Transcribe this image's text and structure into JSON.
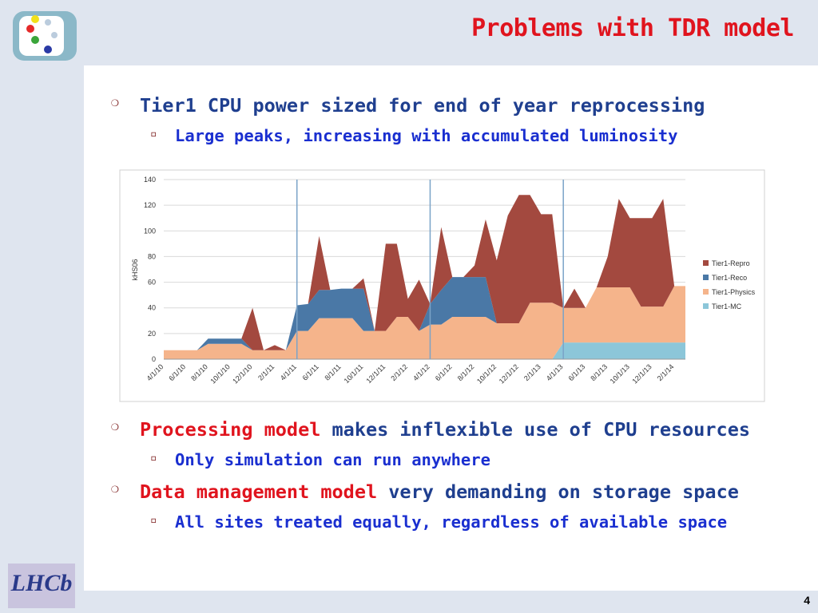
{
  "title": "Problems with TDR model",
  "bullets": [
    {
      "level": 1,
      "runs": [
        {
          "text": "Tier1 CPU power sized for end of year reprocessing",
          "color": "#1f3f8f"
        }
      ]
    },
    {
      "level": 2,
      "runs": [
        {
          "text": "Large peaks, increasing with accumulated luminosity",
          "color": "#1a2fd0"
        }
      ]
    },
    {
      "level": 1,
      "runs": [
        {
          "text": "Processing model",
          "color": "#e0141e"
        },
        {
          "text": " makes inflexible use of CPU resources",
          "color": "#1f3f8f"
        }
      ]
    },
    {
      "level": 2,
      "runs": [
        {
          "text": "Only simulation can run anywhere",
          "color": "#1a2fd0"
        }
      ]
    },
    {
      "level": 1,
      "runs": [
        {
          "text": "Data management model",
          "color": "#e0141e"
        },
        {
          "text": " very demanding on storage space",
          "color": "#1f3f8f"
        }
      ]
    },
    {
      "level": 2,
      "runs": [
        {
          "text": "All sites treated equally, regardless of available space",
          "color": "#1a2fd0"
        }
      ]
    }
  ],
  "logo_text": "LHCb",
  "page_number": "4",
  "chart_data": {
    "type": "stacked_area",
    "ylabel": "kHS06",
    "ylim": [
      0,
      140
    ],
    "yticks": [
      0,
      20,
      40,
      60,
      80,
      100,
      120,
      140
    ],
    "grid": true,
    "legend": "right",
    "categories": [
      "4/1/10",
      null,
      "6/1/10",
      null,
      "8/1/10",
      null,
      "10/1/10",
      null,
      "12/1/10",
      null,
      "2/1/11",
      null,
      "4/1/11",
      null,
      "6/1/11",
      null,
      "8/1/11",
      null,
      "10/1/11",
      null,
      "12/1/11",
      null,
      "2/1/12",
      null,
      "4/1/12",
      null,
      "6/1/12",
      null,
      "8/1/12",
      null,
      "10/1/12",
      null,
      "12/1/12",
      null,
      "2/1/13",
      null,
      "4/1/13",
      null,
      "6/1/13",
      null,
      "8/1/13",
      null,
      "10/1/13",
      null,
      "12/1/13",
      null,
      "2/1/14",
      null
    ],
    "series": [
      {
        "name": "Tier1-Repro",
        "color": "#a3493f",
        "values": [
          0,
          0,
          0,
          0,
          0,
          0,
          0,
          0,
          33,
          0,
          4,
          0,
          0,
          0,
          42,
          0,
          0,
          0,
          8,
          0,
          68,
          57,
          14,
          40,
          0,
          49,
          0,
          0,
          9,
          45,
          49,
          84,
          100,
          84,
          69,
          69,
          0,
          15,
          0,
          0,
          24,
          69,
          54,
          69,
          69,
          84,
          0,
          0
        ]
      },
      {
        "name": "Tier1-Reco",
        "color": "#4a78a6",
        "values": [
          0,
          0,
          0,
          0,
          4,
          4,
          4,
          4,
          0,
          0,
          0,
          0,
          20,
          21,
          22,
          22,
          23,
          23,
          33,
          0,
          0,
          0,
          0,
          0,
          16,
          27,
          31,
          31,
          31,
          31,
          0,
          0,
          0,
          0,
          0,
          0,
          0,
          0,
          0,
          0,
          0,
          0,
          0,
          0,
          0,
          0,
          0,
          0
        ]
      },
      {
        "name": "Tier1-Physics",
        "color": "#f5b48b",
        "values": [
          7,
          7,
          7,
          7,
          12,
          12,
          12,
          12,
          7,
          7,
          7,
          7,
          22,
          22,
          32,
          32,
          32,
          32,
          22,
          22,
          22,
          33,
          33,
          22,
          27,
          27,
          33,
          33,
          33,
          33,
          28,
          28,
          28,
          44,
          44,
          44,
          27,
          27,
          27,
          43,
          43,
          43,
          43,
          28,
          28,
          28,
          44,
          44
        ]
      },
      {
        "name": "Tier1-MC",
        "color": "#8cc6d9",
        "values": [
          0,
          0,
          0,
          0,
          0,
          0,
          0,
          0,
          0,
          0,
          0,
          0,
          0,
          0,
          0,
          0,
          0,
          0,
          0,
          0,
          0,
          0,
          0,
          0,
          0,
          0,
          0,
          0,
          0,
          0,
          0,
          0,
          0,
          0,
          0,
          0,
          13,
          13,
          13,
          13,
          13,
          13,
          13,
          13,
          13,
          13,
          13,
          13
        ]
      }
    ]
  }
}
